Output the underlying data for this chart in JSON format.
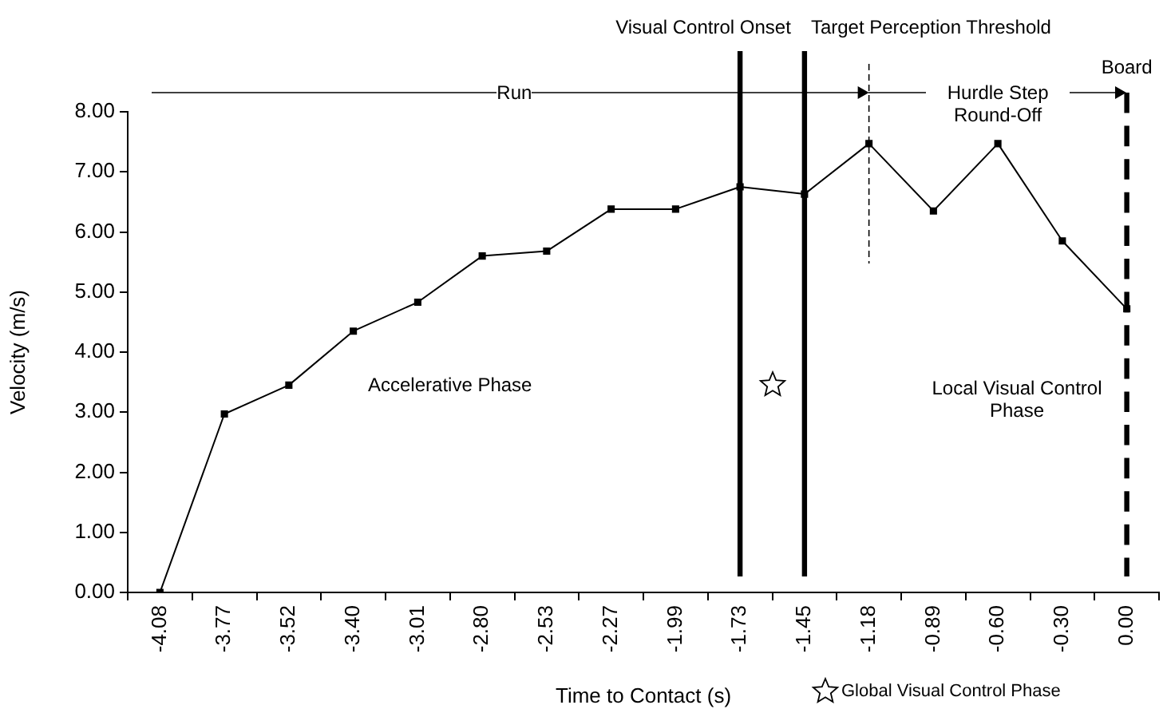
{
  "chart_data": {
    "type": "line",
    "xlabel": "Time to Contact (s)",
    "ylabel": "Velocity (m/s)",
    "categories": [
      "-4.08",
      "-3.77",
      "-3.52",
      "-3.40",
      "-3.01",
      "-2.80",
      "-2.53",
      "-2.27",
      "-1.99",
      "-1.73",
      "-1.45",
      "-1.18",
      "-0.89",
      "-0.60",
      "-0.30",
      "0.00"
    ],
    "series": [
      {
        "color": "#000000",
        "values": [
          0,
          2.97,
          3.45,
          4.35,
          4.83,
          5.6,
          5.68,
          6.38,
          6.38,
          6.75,
          6.63,
          7.47,
          6.35,
          7.47,
          5.85,
          4.72
        ]
      }
    ],
    "ylim": [
      0,
      8
    ],
    "yticks": [
      {
        "value": 0,
        "label": "0.00"
      },
      {
        "value": 1,
        "label": "1.00"
      },
      {
        "value": 2,
        "label": "2.00"
      },
      {
        "value": 3,
        "label": "3.00"
      },
      {
        "value": 4,
        "label": "4.00"
      },
      {
        "value": 5,
        "label": "5.00"
      },
      {
        "value": 6,
        "label": "6.00"
      },
      {
        "value": 7,
        "label": "7.00"
      },
      {
        "value": 8,
        "label": "8.00"
      }
    ],
    "ref_lines": [
      {
        "axis": "x",
        "value": "-1.73",
        "label": "Visual Control Onset",
        "color": "#000000",
        "line_style": "solid"
      },
      {
        "axis": "x",
        "value": "-1.45",
        "label": "Target Perception Threshold",
        "color": "#000000",
        "line_style": "solid"
      },
      {
        "axis": "x",
        "value": "-1.18",
        "label": null,
        "color": "#000000",
        "line_style": "dashed"
      },
      {
        "axis": "x",
        "value": "0.00",
        "label": "Board",
        "color": "#000000",
        "line_style": "dashed"
      }
    ],
    "annotations": [
      "Run",
      "Hurdle Step Round-Off",
      "Accelerative Phase",
      "Local Visual Control Phase",
      "Global Visual Control Phase"
    ],
    "grid": false,
    "legend": false,
    "marker": "square",
    "line_style": "solid"
  }
}
